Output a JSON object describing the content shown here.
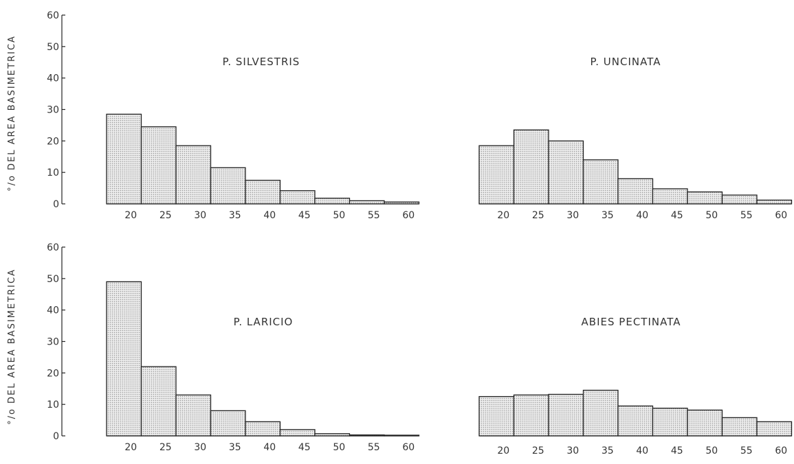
{
  "ylabel": "°/o DEL AREA BASIMETRICA",
  "chart_data": [
    {
      "type": "bar",
      "title": "P. SILVESTRIS",
      "ylabel": "°/o DEL AREA BASIMETRICA",
      "ylim": [
        0,
        60
      ],
      "yticks": [
        "0",
        "10",
        "20",
        "30",
        "40",
        "50",
        "60"
      ],
      "categories": [
        "20",
        "25",
        "30",
        "35",
        "40",
        "45",
        "50",
        "55",
        "60"
      ],
      "values": [
        28.5,
        24.5,
        18.5,
        11.5,
        7.5,
        4.2,
        1.8,
        1.0,
        0.6
      ]
    },
    {
      "type": "bar",
      "title": "P. UNCINATA",
      "ylim": [
        0,
        60
      ],
      "categories": [
        "20",
        "25",
        "30",
        "35",
        "40",
        "45",
        "50",
        "55",
        "60"
      ],
      "values": [
        18.5,
        23.5,
        20.0,
        14.0,
        8.0,
        4.8,
        3.8,
        2.8,
        1.2
      ]
    },
    {
      "type": "bar",
      "title": "P. LARICIO",
      "ylabel": "°/o DEL AREA BASIMETRICA",
      "ylim": [
        0,
        60
      ],
      "yticks": [
        "0",
        "10",
        "20",
        "30",
        "40",
        "50",
        "60"
      ],
      "categories": [
        "20",
        "25",
        "30",
        "35",
        "40",
        "45",
        "50",
        "55",
        "60"
      ],
      "values": [
        49.0,
        22.0,
        13.0,
        8.0,
        4.5,
        2.0,
        0.7,
        0.3,
        0.1
      ]
    },
    {
      "type": "bar",
      "title": "ABIES PECTINATA",
      "ylim": [
        0,
        60
      ],
      "categories": [
        "20",
        "25",
        "30",
        "35",
        "40",
        "45",
        "50",
        "55",
        "60"
      ],
      "values": [
        12.5,
        13.0,
        13.2,
        14.5,
        9.5,
        8.8,
        8.2,
        5.8,
        4.5
      ]
    }
  ]
}
